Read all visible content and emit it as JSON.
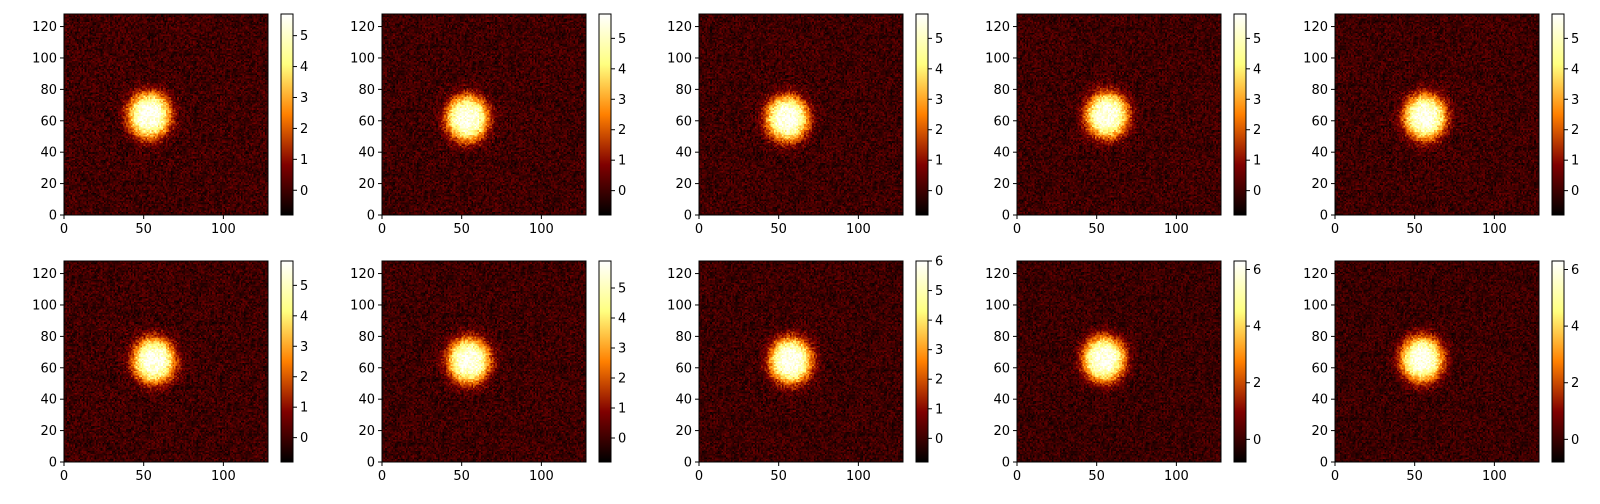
{
  "chart_data": [
    {
      "type": "heatmap",
      "colormap": "afmhot",
      "x_ticks": [
        0,
        50,
        100
      ],
      "y_ticks": [
        0,
        20,
        40,
        60,
        80,
        100,
        120
      ],
      "xlim": [
        0,
        128
      ],
      "ylim": [
        0,
        128
      ],
      "image": {
        "peak": 5.7,
        "center": [
          53,
          63
        ],
        "sigma": [
          11,
          12
        ],
        "floor": -0.8
      },
      "colorbar": {
        "vmin": -0.8,
        "vmax": 5.7,
        "ticks": [
          0,
          1,
          2,
          3,
          4,
          5
        ]
      }
    },
    {
      "type": "heatmap",
      "colormap": "afmhot",
      "x_ticks": [
        0,
        50,
        100
      ],
      "y_ticks": [
        0,
        20,
        40,
        60,
        80,
        100,
        120
      ],
      "xlim": [
        0,
        128
      ],
      "ylim": [
        0,
        128
      ],
      "image": {
        "peak": 5.7,
        "center": [
          53,
          61
        ],
        "sigma": [
          11,
          12
        ],
        "floor": -0.8
      },
      "colorbar": {
        "vmin": -0.8,
        "vmax": 5.8,
        "ticks": [
          0,
          1,
          2,
          3,
          4,
          5
        ]
      }
    },
    {
      "type": "heatmap",
      "colormap": "afmhot",
      "x_ticks": [
        0,
        50,
        100
      ],
      "y_ticks": [
        0,
        20,
        40,
        60,
        80,
        100,
        120
      ],
      "xlim": [
        0,
        128
      ],
      "ylim": [
        0,
        128
      ],
      "image": {
        "peak": 5.7,
        "center": [
          55,
          61
        ],
        "sigma": [
          11,
          12
        ],
        "floor": -0.8
      },
      "colorbar": {
        "vmin": -0.8,
        "vmax": 5.8,
        "ticks": [
          0,
          1,
          2,
          3,
          4,
          5
        ]
      }
    },
    {
      "type": "heatmap",
      "colormap": "afmhot",
      "x_ticks": [
        0,
        50,
        100
      ],
      "y_ticks": [
        0,
        20,
        40,
        60,
        80,
        100,
        120
      ],
      "xlim": [
        0,
        128
      ],
      "ylim": [
        0,
        128
      ],
      "image": {
        "peak": 5.7,
        "center": [
          56,
          63
        ],
        "sigma": [
          11,
          12
        ],
        "floor": -0.8
      },
      "colorbar": {
        "vmin": -0.8,
        "vmax": 5.8,
        "ticks": [
          0,
          1,
          2,
          3,
          4,
          5
        ]
      }
    },
    {
      "type": "heatmap",
      "colormap": "afmhot",
      "x_ticks": [
        0,
        50,
        100
      ],
      "y_ticks": [
        0,
        20,
        40,
        60,
        80,
        100,
        120
      ],
      "xlim": [
        0,
        128
      ],
      "ylim": [
        0,
        128
      ],
      "image": {
        "peak": 5.7,
        "center": [
          56,
          62
        ],
        "sigma": [
          11,
          12
        ],
        "floor": -0.8
      },
      "colorbar": {
        "vmin": -0.8,
        "vmax": 5.8,
        "ticks": [
          0,
          1,
          2,
          3,
          4,
          5
        ]
      }
    },
    {
      "type": "heatmap",
      "colormap": "afmhot",
      "x_ticks": [
        0,
        50,
        100
      ],
      "y_ticks": [
        0,
        20,
        40,
        60,
        80,
        100,
        120
      ],
      "xlim": [
        0,
        128
      ],
      "ylim": [
        0,
        128
      ],
      "image": {
        "peak": 5.7,
        "center": [
          56,
          64
        ],
        "sigma": [
          11,
          12
        ],
        "floor": -0.8
      },
      "colorbar": {
        "vmin": -0.8,
        "vmax": 5.8,
        "ticks": [
          0,
          1,
          2,
          3,
          4,
          5
        ]
      }
    },
    {
      "type": "heatmap",
      "colormap": "afmhot",
      "x_ticks": [
        0,
        50,
        100
      ],
      "y_ticks": [
        0,
        20,
        40,
        60,
        80,
        100,
        120
      ],
      "xlim": [
        0,
        128
      ],
      "ylim": [
        0,
        128
      ],
      "image": {
        "peak": 5.8,
        "center": [
          54,
          64
        ],
        "sigma": [
          11,
          12
        ],
        "floor": -0.8
      },
      "colorbar": {
        "vmin": -0.8,
        "vmax": 5.9,
        "ticks": [
          0,
          1,
          2,
          3,
          4,
          5
        ]
      }
    },
    {
      "type": "heatmap",
      "colormap": "afmhot",
      "x_ticks": [
        0,
        50,
        100
      ],
      "y_ticks": [
        0,
        20,
        40,
        60,
        80,
        100,
        120
      ],
      "xlim": [
        0,
        128
      ],
      "ylim": [
        0,
        128
      ],
      "image": {
        "peak": 6.0,
        "center": [
          57,
          64
        ],
        "sigma": [
          11,
          12
        ],
        "floor": -0.8
      },
      "colorbar": {
        "vmin": -0.8,
        "vmax": 6.0,
        "ticks": [
          0,
          1,
          2,
          3,
          4,
          5,
          6
        ]
      }
    },
    {
      "type": "heatmap",
      "colormap": "afmhot",
      "x_ticks": [
        0,
        50,
        100
      ],
      "y_ticks": [
        0,
        20,
        40,
        60,
        80,
        100,
        120
      ],
      "xlim": [
        0,
        128
      ],
      "ylim": [
        0,
        128
      ],
      "image": {
        "peak": 6.2,
        "center": [
          54,
          65
        ],
        "sigma": [
          11,
          12
        ],
        "floor": -0.8
      },
      "colorbar": {
        "vmin": -0.8,
        "vmax": 6.3,
        "ticks": [
          0,
          2,
          4,
          6
        ]
      }
    },
    {
      "type": "heatmap",
      "colormap": "afmhot",
      "x_ticks": [
        0,
        50,
        100
      ],
      "y_ticks": [
        0,
        20,
        40,
        60,
        80,
        100,
        120
      ],
      "xlim": [
        0,
        128
      ],
      "ylim": [
        0,
        128
      ],
      "image": {
        "peak": 6.2,
        "center": [
          54,
          65
        ],
        "sigma": [
          11,
          12
        ],
        "floor": -0.8
      },
      "colorbar": {
        "vmin": -0.8,
        "vmax": 6.3,
        "ticks": [
          0,
          2,
          4,
          6
        ]
      }
    }
  ]
}
